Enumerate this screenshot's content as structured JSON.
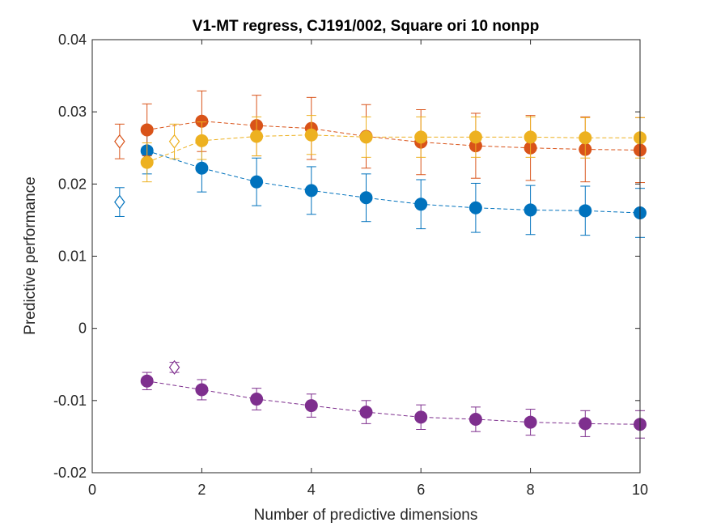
{
  "chart_data": {
    "type": "scatter",
    "title": "V1-MT regress, CJ191/002, Square ori 10 nonpp",
    "xlabel": "Number of predictive dimensions",
    "ylabel": "Predictive performance",
    "xlim": [
      0,
      10
    ],
    "ylim": [
      -0.02,
      0.04
    ],
    "xticks": [
      0,
      2,
      4,
      6,
      8,
      10
    ],
    "yticks": [
      -0.02,
      -0.01,
      0,
      0.01,
      0.02,
      0.03,
      0.04
    ],
    "xtick_labels": [
      "0",
      "2",
      "4",
      "6",
      "8",
      "10"
    ],
    "ytick_labels": [
      "-0.02",
      "-0.01",
      "0",
      "0.01",
      "0.02",
      "0.03",
      "0.04"
    ],
    "grid": false,
    "legend": "none",
    "series": [
      {
        "color": "#0072BD",
        "x": [
          1,
          2,
          3,
          4,
          5,
          6,
          7,
          8,
          9,
          10
        ],
        "y": [
          0.0246,
          0.0222,
          0.0203,
          0.0191,
          0.0181,
          0.0172,
          0.0167,
          0.0164,
          0.0163,
          0.016
        ],
        "err": [
          0.0032,
          0.0033,
          0.0033,
          0.0033,
          0.0033,
          0.0034,
          0.0034,
          0.0034,
          0.0034,
          0.0034
        ],
        "full_model": {
          "x": 0.5,
          "y": 0.0175,
          "err": 0.002
        }
      },
      {
        "color": "#D95319",
        "x": [
          1,
          2,
          3,
          4,
          5,
          6,
          7,
          8,
          9,
          10
        ],
        "y": [
          0.0275,
          0.0287,
          0.0281,
          0.0277,
          0.0266,
          0.0258,
          0.0253,
          0.025,
          0.0248,
          0.0247
        ],
        "err": [
          0.0036,
          0.0042,
          0.0042,
          0.0043,
          0.0044,
          0.0045,
          0.0045,
          0.0045,
          0.0045,
          0.0045
        ],
        "full_model": {
          "x": 0.5,
          "y": 0.0259,
          "err": 0.0024
        }
      },
      {
        "color": "#EDB120",
        "x": [
          1,
          2,
          3,
          4,
          5,
          6,
          7,
          8,
          9,
          10
        ],
        "y": [
          0.023,
          0.026,
          0.0266,
          0.0268,
          0.0265,
          0.0265,
          0.0265,
          0.0265,
          0.0264,
          0.0264
        ],
        "err": [
          0.0027,
          0.0026,
          0.0027,
          0.0027,
          0.0028,
          0.0028,
          0.0028,
          0.0028,
          0.0028,
          0.0028
        ],
        "full_model": {
          "x": 1.5,
          "y": 0.0259,
          "err": 0.0024
        }
      },
      {
        "color": "#7E2F8E",
        "x": [
          1,
          2,
          3,
          4,
          5,
          6,
          7,
          8,
          9,
          10
        ],
        "y": [
          -0.0073,
          -0.0085,
          -0.0098,
          -0.0107,
          -0.0116,
          -0.0123,
          -0.0126,
          -0.013,
          -0.0132,
          -0.0133
        ],
        "err": [
          0.0012,
          0.0014,
          0.0015,
          0.0016,
          0.0016,
          0.0017,
          0.0017,
          0.0018,
          0.0018,
          0.0019
        ],
        "full_model": {
          "x": 1.5,
          "y": -0.0054,
          "err": 0.0007
        }
      }
    ]
  }
}
